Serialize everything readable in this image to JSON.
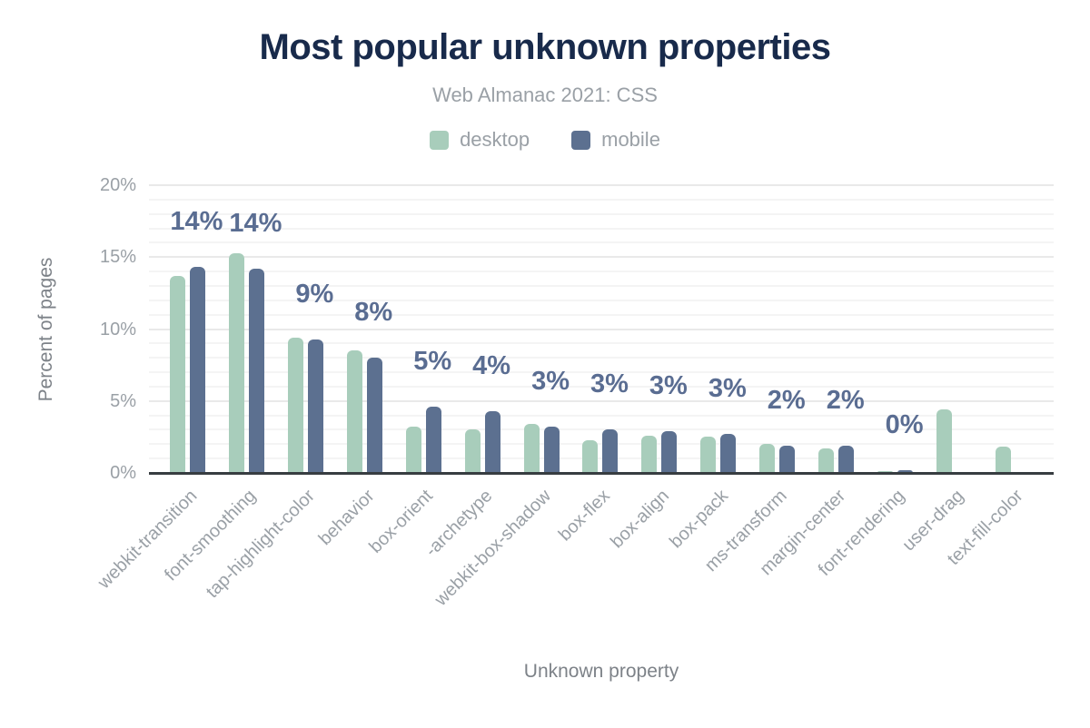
{
  "chart_data": {
    "type": "bar",
    "title": "Most popular unknown properties",
    "subtitle": "Web Almanac 2021: CSS",
    "xlabel": "Unknown property",
    "ylabel": "Percent of pages",
    "ylim": [
      0,
      20
    ],
    "yticks": [
      0,
      5,
      10,
      15,
      20
    ],
    "ytick_suffix": "%",
    "grid": "horizontal: minor every 1%, major every 5%",
    "legend_position": "top-center",
    "categories": [
      "webkit-transition",
      "font-smoothing",
      "tap-highlight-color",
      "behavior",
      "box-orient",
      "-archetype",
      "webkit-box-shadow",
      "box-flex",
      "box-align",
      "box-pack",
      "ms-transform",
      "margin-center",
      "font-rendering",
      "user-drag",
      "text-fill-color"
    ],
    "series": [
      {
        "name": "desktop",
        "color": "#a8cdbb",
        "values": [
          13.7,
          15.3,
          9.4,
          8.5,
          3.2,
          3.0,
          3.4,
          2.3,
          2.6,
          2.5,
          2.0,
          1.7,
          0.1,
          4.4,
          1.8
        ]
      },
      {
        "name": "mobile",
        "color": "#5c7090",
        "values": [
          14.3,
          14.2,
          9.3,
          8.0,
          4.6,
          4.3,
          3.2,
          3.0,
          2.9,
          2.7,
          1.9,
          1.9,
          0.2,
          null,
          null
        ]
      }
    ],
    "bar_value_labels": [
      "14%",
      "14%",
      "9%",
      "8%",
      "5%",
      "4%",
      "3%",
      "3%",
      "3%",
      "3%",
      "2%",
      "2%",
      "0%",
      null,
      null
    ],
    "bar_value_labels_source": "mobile"
  },
  "styles": {
    "title_color": "#182a4b",
    "gray_text_color": "#9aa0a6",
    "axis_title_color": "#7d8288",
    "data_label_color": "#5a6d92",
    "axis_line_color": "#373d41",
    "grid_minor_color": "#f4f4f4",
    "grid_major_color": "#e9e9e9",
    "desktop_color": "#a8cdbb",
    "mobile_color": "#5c7090"
  }
}
